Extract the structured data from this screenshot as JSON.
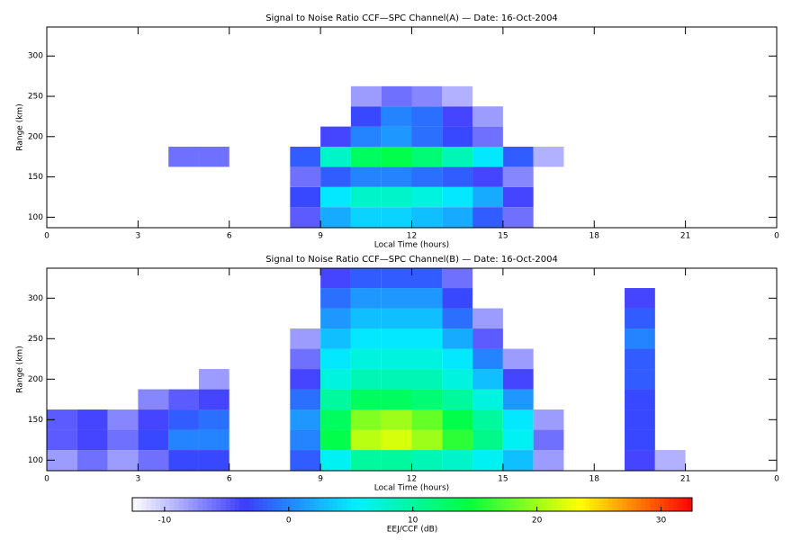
{
  "chart_data": [
    {
      "type": "heatmap",
      "title": "Signal to Noise Ratio CCF—SPC Channel(A) — Date: 16-Oct-2004",
      "xlabel": "Local Time (hours)",
      "ylabel": "Range (km)",
      "xlim": [
        0,
        24
      ],
      "xticks": [
        0,
        3,
        6,
        9,
        12,
        15,
        18,
        21,
        {
          "value": 24,
          "label": "0"
        }
      ],
      "ylim": [
        87,
        336
      ],
      "yticks": [
        100,
        150,
        200,
        250,
        300
      ],
      "x": [
        0.5,
        1.5,
        2.5,
        3.5,
        4.5,
        5.5,
        6.5,
        7.5,
        8.5,
        9.5,
        10.5,
        11.5,
        12.5,
        13.5,
        14.5,
        15.5,
        16.5,
        17.5,
        18.5,
        19.5,
        20.5,
        21.5,
        22.5,
        23.5
      ],
      "y": [
        100,
        125,
        150,
        175,
        200,
        225,
        250,
        275,
        300,
        325
      ],
      "z": [
        [
          null,
          null,
          null,
          null,
          null,
          null,
          null,
          null,
          -5,
          2,
          4,
          4,
          3,
          2,
          -2,
          -6,
          null,
          null,
          null,
          null,
          null,
          null,
          null,
          null
        ],
        [
          null,
          null,
          null,
          null,
          null,
          null,
          null,
          null,
          -3,
          5,
          8,
          8,
          7,
          5,
          2,
          -4,
          null,
          null,
          null,
          null,
          null,
          null,
          null,
          null
        ],
        [
          null,
          null,
          null,
          null,
          null,
          null,
          null,
          null,
          -6,
          -2,
          0,
          0,
          -1,
          -2,
          -4,
          -7,
          null,
          null,
          null,
          null,
          null,
          null,
          null,
          null
        ],
        [
          null,
          null,
          null,
          null,
          -6,
          -6,
          null,
          null,
          -2,
          8,
          13,
          14,
          12,
          9,
          5,
          -2,
          -9,
          null,
          null,
          null,
          null,
          null,
          null,
          null
        ],
        [
          null,
          null,
          null,
          null,
          null,
          null,
          null,
          null,
          null,
          -4,
          0,
          1,
          -1,
          -3,
          -6,
          null,
          null,
          null,
          null,
          null,
          null,
          null,
          null,
          null
        ],
        [
          null,
          null,
          null,
          null,
          null,
          null,
          null,
          null,
          null,
          null,
          -3,
          0,
          -1,
          -4,
          -8,
          null,
          null,
          null,
          null,
          null,
          null,
          null,
          null,
          null
        ],
        [
          null,
          null,
          null,
          null,
          null,
          null,
          null,
          null,
          null,
          null,
          -8,
          -6,
          -7,
          -9,
          null,
          null,
          null,
          null,
          null,
          null,
          null,
          null,
          null,
          null
        ],
        [
          null,
          null,
          null,
          null,
          null,
          null,
          null,
          null,
          null,
          null,
          null,
          null,
          null,
          null,
          null,
          null,
          null,
          null,
          null,
          null,
          null,
          null,
          null,
          null
        ],
        [
          null,
          null,
          null,
          null,
          null,
          null,
          null,
          null,
          null,
          null,
          null,
          null,
          null,
          null,
          null,
          null,
          null,
          null,
          null,
          null,
          null,
          null,
          null,
          null
        ],
        [
          null,
          null,
          null,
          null,
          null,
          null,
          null,
          null,
          null,
          null,
          null,
          null,
          null,
          null,
          null,
          null,
          null,
          null,
          null,
          null,
          null,
          null,
          null,
          null
        ]
      ]
    },
    {
      "type": "heatmap",
      "title": "Signal to Noise Ratio CCF—SPC Channel(B) — Date: 16-Oct-2004",
      "xlabel": "Local Time (hours)",
      "ylabel": "Range (km)",
      "xlim": [
        0,
        24
      ],
      "xticks": [
        0,
        3,
        6,
        9,
        12,
        15,
        18,
        21,
        {
          "value": 24,
          "label": "0"
        }
      ],
      "ylim": [
        87,
        337
      ],
      "yticks": [
        100,
        150,
        200,
        250,
        300
      ],
      "x": [
        0.5,
        1.5,
        2.5,
        3.5,
        4.5,
        5.5,
        6.5,
        7.5,
        8.5,
        9.5,
        10.5,
        11.5,
        12.5,
        13.5,
        14.5,
        15.5,
        16.5,
        17.5,
        18.5,
        19.5,
        20.5,
        21.5,
        22.5,
        23.5
      ],
      "y": [
        100,
        125,
        150,
        175,
        200,
        225,
        250,
        275,
        300,
        325
      ],
      "z": [
        [
          -8,
          -6,
          -8,
          -6,
          -3,
          -3,
          null,
          null,
          -2,
          6,
          10,
          10,
          9,
          8,
          6,
          3,
          -8,
          null,
          null,
          -4,
          -9,
          null,
          null,
          null
        ],
        [
          -5,
          -4,
          -6,
          -3,
          0,
          0,
          null,
          null,
          0,
          14,
          21,
          22,
          20,
          16,
          11,
          6,
          -6,
          null,
          null,
          -3,
          null,
          null,
          null,
          null
        ],
        [
          -5,
          -4,
          -7,
          -4,
          -2,
          -1,
          null,
          null,
          1,
          13,
          19,
          20,
          18,
          14,
          10,
          5,
          -8,
          null,
          null,
          -3,
          null,
          null,
          null,
          null
        ],
        [
          null,
          null,
          null,
          -7,
          -5,
          -4,
          null,
          null,
          -1,
          10,
          13,
          13,
          12,
          10,
          7,
          1,
          null,
          null,
          null,
          -3,
          null,
          null,
          null,
          null
        ],
        [
          null,
          null,
          null,
          null,
          null,
          -8,
          null,
          null,
          -4,
          7,
          9,
          9,
          9,
          7,
          3,
          -4,
          null,
          null,
          null,
          -2,
          null,
          null,
          null,
          null
        ],
        [
          null,
          null,
          null,
          null,
          null,
          null,
          null,
          null,
          -6,
          5,
          7,
          7,
          7,
          5,
          0,
          -8,
          null,
          null,
          null,
          -2,
          null,
          null,
          null,
          null
        ],
        [
          null,
          null,
          null,
          null,
          null,
          null,
          null,
          null,
          -8,
          3,
          5,
          5,
          5,
          2,
          -5,
          null,
          null,
          null,
          null,
          0,
          null,
          null,
          null,
          null
        ],
        [
          null,
          null,
          null,
          null,
          null,
          null,
          null,
          null,
          null,
          1,
          3,
          3,
          3,
          -1,
          -8,
          null,
          null,
          null,
          null,
          -2,
          null,
          null,
          null,
          null
        ],
        [
          null,
          null,
          null,
          null,
          null,
          null,
          null,
          null,
          null,
          -1,
          1,
          1,
          1,
          -3,
          null,
          null,
          null,
          null,
          null,
          -4,
          null,
          null,
          null,
          null
        ],
        [
          null,
          null,
          null,
          null,
          null,
          null,
          null,
          null,
          null,
          -4,
          -2,
          -2,
          -2,
          -6,
          null,
          null,
          null,
          null,
          null,
          null,
          null,
          null,
          null,
          null
        ]
      ]
    }
  ],
  "colorbar": {
    "label": "EEJ/CCF (dB)",
    "zlim": [
      -12.6,
      32.5
    ],
    "ticks": [
      -10,
      0,
      10,
      20,
      30
    ],
    "colors": [
      "#ffffff",
      "#3c3cff",
      "#00f0ff",
      "#00ff40",
      "#ffff00",
      "#ff0000"
    ]
  }
}
